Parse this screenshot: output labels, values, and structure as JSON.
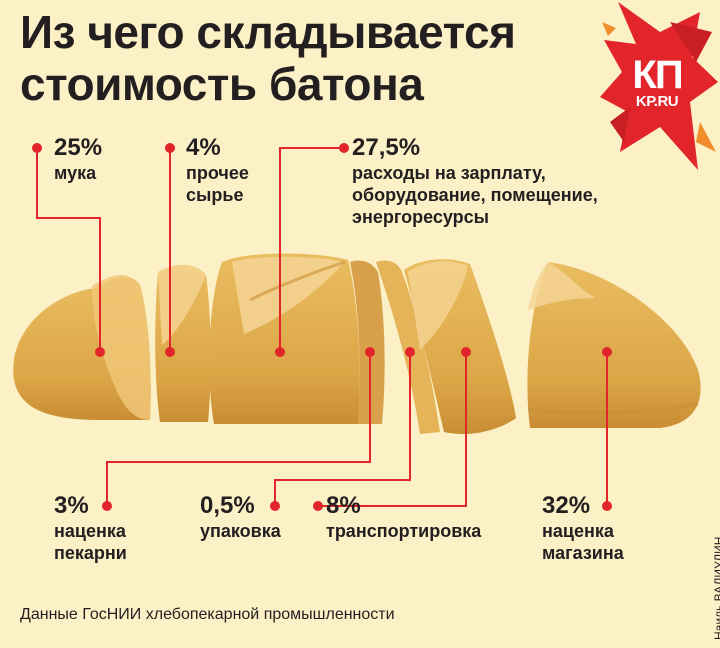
{
  "title_line1": "Из чего складывается",
  "title_line2": "стоимость батона",
  "logo": {
    "main": "КП",
    "sub": "KP.RU"
  },
  "source": "Данные ГосНИИ хлебопекарной промышленности",
  "credit": "Наиль ВАЛИУЛИН",
  "colors": {
    "background": "#fbf0c6",
    "dot": "#e2242b",
    "bread": "#e2b052",
    "crumb": "#f5d595",
    "text": "#231f20"
  },
  "chart_data": {
    "type": "pie",
    "unit": "%",
    "slices": [
      {
        "pct": "25%",
        "value": 25,
        "label": "мука"
      },
      {
        "pct": "4%",
        "value": 4,
        "label": "прочее\nсырье"
      },
      {
        "pct": "27,5%",
        "value": 27.5,
        "label": "расходы на зарплату,\nоборудование, помещение,\nэнергоресурсы"
      },
      {
        "pct": "3%",
        "value": 3,
        "label": "наценка\nпекарни"
      },
      {
        "pct": "0,5%",
        "value": 0.5,
        "label": "упаковка"
      },
      {
        "pct": "8%",
        "value": 8,
        "label": "транспортировка"
      },
      {
        "pct": "32%",
        "value": 32,
        "label": "наценка\nмагазина"
      }
    ]
  }
}
